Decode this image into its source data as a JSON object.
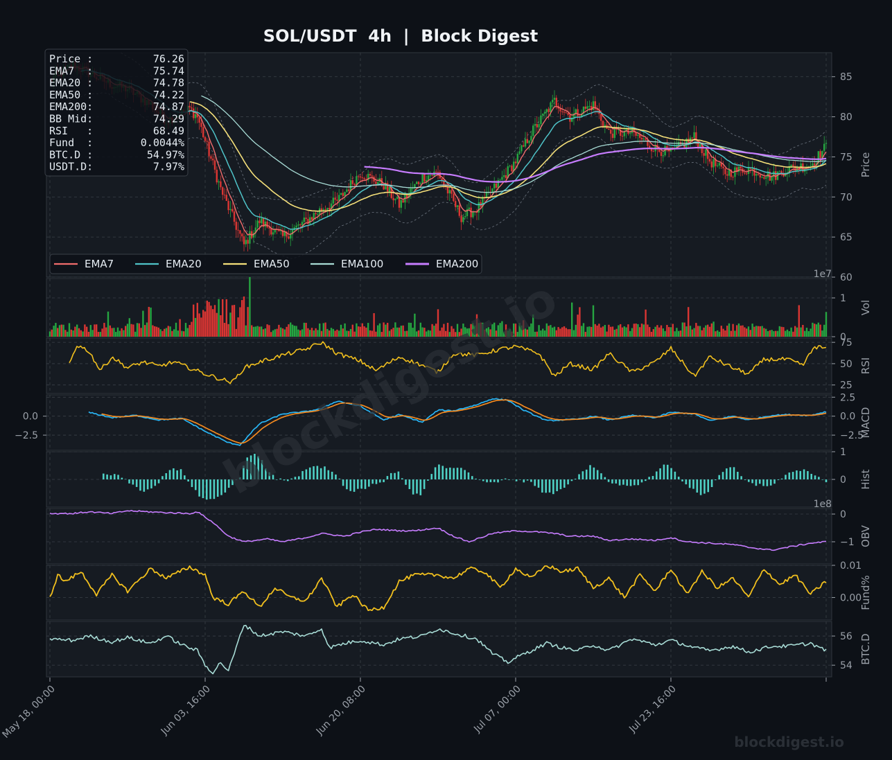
{
  "title": "SOL/USDT  4h  |  Block Digest",
  "watermark_center": "blockdigest.io",
  "watermark_corner": "blockdigest.io",
  "colors": {
    "background": "#0d1117",
    "panel": "#161b22",
    "grid": "#3a4048",
    "ema7": "#f06c6c",
    "ema20": "#4fc3c8",
    "ema50": "#f5e07a",
    "ema100": "#a8dcd6",
    "ema200": "#c77dff",
    "candle_up": "#26a641",
    "candle_down": "#da3633",
    "rsi": "#f2c01e",
    "macd": "#29b6f6",
    "signal": "#f58a1f",
    "hist": "#4fd1c5",
    "obv": "#c77dff",
    "fund": "#f2c01e",
    "btcd": "#a8dcd6"
  },
  "info_box": [
    {
      "label": "Price :",
      "value": "76.26"
    },
    {
      "label": "EMA7  :",
      "value": "75.74"
    },
    {
      "label": "EMA20 :",
      "value": "74.78"
    },
    {
      "label": "EMA50 :",
      "value": "74.22"
    },
    {
      "label": "EMA200:",
      "value": "74.87"
    },
    {
      "label": "BB Mid:",
      "value": "74.29"
    },
    {
      "label": "RSI   :",
      "value": "68.49"
    },
    {
      "label": "Fund  :",
      "value": "0.0044%"
    },
    {
      "label": "BTC.D :",
      "value": "54.97%"
    },
    {
      "label": "USDT.D:",
      "value": "7.97%"
    }
  ],
  "chart_data": {
    "type": "line",
    "x_tick_labels": [
      "May 18, 00:00",
      "Jun 03, 16:00",
      "Jun 20, 08:00",
      "Jul 07, 00:00",
      "Jul 23, 16:00"
    ],
    "legend": [
      "EMA7",
      "EMA20",
      "EMA50",
      "EMA100",
      "EMA200"
    ],
    "legend_position": "lower-left of price panel",
    "grid": true,
    "panels": [
      {
        "id": "price",
        "ylabel": "Price",
        "ylim": [
          60,
          88
        ],
        "ticks": [
          "60",
          "65",
          "70",
          "75",
          "80",
          "85"
        ],
        "tick_values": [
          60,
          65,
          70,
          75,
          80,
          85
        ]
      },
      {
        "id": "vol",
        "ylabel": "Vol",
        "ylim": [
          0,
          1.5
        ],
        "ticks": [
          "0",
          "1"
        ],
        "tick_values": [
          0,
          1
        ],
        "offset_label": "1e7"
      },
      {
        "id": "rsi",
        "ylabel": "RSI",
        "ylim": [
          15,
          80
        ],
        "ticks": [
          "25",
          "50",
          "75"
        ],
        "tick_values": [
          25,
          50,
          75
        ]
      },
      {
        "id": "macd",
        "ylabel": "MACD",
        "ylim": [
          -4.5,
          2.8
        ],
        "ticks": [
          "2.5",
          "0.0",
          "−2.5"
        ],
        "tick_values": [
          2.5,
          0,
          -2.5
        ],
        "left_ticks": [
          "0.0",
          "−2.5"
        ]
      },
      {
        "id": "hist",
        "ylabel": "Hist",
        "ylim": [
          -1.0,
          1.0
        ],
        "ticks": [
          "1",
          "0"
        ],
        "tick_values": [
          1,
          0
        ]
      },
      {
        "id": "obv",
        "ylabel": "OBV",
        "ylim": [
          -1.8,
          0.2
        ],
        "ticks": [
          "0",
          "−1"
        ],
        "tick_values": [
          0,
          -1
        ],
        "offset_label": "1e8"
      },
      {
        "id": "fund",
        "ylabel": "Fund%",
        "ylim": [
          -0.007,
          0.01
        ],
        "ticks": [
          "0.01",
          "0.00"
        ],
        "tick_values": [
          0.01,
          0.0
        ]
      },
      {
        "id": "btcd",
        "ylabel": "BTC.D",
        "ylim": [
          53.2,
          57.0
        ],
        "ticks": [
          "56",
          "54"
        ],
        "tick_values": [
          56,
          54
        ]
      }
    ],
    "price_close_path": {
      "x": [
        0,
        3,
        5,
        8,
        10,
        13,
        15,
        18,
        19,
        22,
        25,
        27,
        30,
        33,
        35,
        37,
        40,
        43,
        45,
        48,
        50,
        53,
        55,
        58,
        60,
        62,
        65,
        67,
        70,
        72,
        75,
        78,
        80,
        83,
        85,
        87,
        90,
        93,
        95,
        98,
        100
      ],
      "y": [
        84.5,
        86.5,
        85.5,
        84.0,
        83.5,
        81.5,
        79.5,
        81.0,
        80.0,
        71.0,
        64.0,
        67.0,
        65.0,
        67.0,
        68.5,
        69.5,
        73.0,
        71.5,
        69.0,
        72.5,
        73.0,
        67.5,
        68.5,
        72.0,
        74.5,
        78.0,
        82.0,
        80.0,
        81.5,
        78.0,
        78.0,
        76.0,
        75.5,
        77.5,
        74.5,
        73.0,
        73.5,
        72.5,
        73.5,
        74.0,
        76.3
      ]
    },
    "volume_scale": "1e7",
    "rsi_path": {
      "x": [
        2.5,
        3.5,
        5,
        6.5,
        8,
        10,
        12,
        14,
        16,
        18,
        20,
        22,
        23.5,
        25,
        27,
        30,
        33,
        35,
        37,
        40,
        42,
        45,
        48,
        50,
        52,
        55,
        58,
        60,
        63,
        65,
        67,
        70,
        72,
        75,
        78,
        80,
        83,
        85,
        88,
        90,
        92,
        95,
        97,
        98.5,
        100
      ],
      "y": [
        50,
        72,
        65,
        42,
        58,
        45,
        52,
        47,
        52,
        45,
        38,
        32,
        28,
        45,
        52,
        60,
        67,
        75,
        62,
        53,
        42,
        58,
        48,
        40,
        62,
        60,
        67,
        70,
        62,
        35,
        50,
        43,
        62,
        40,
        52,
        68,
        35,
        58,
        45,
        38,
        55,
        55,
        48,
        70,
        68
      ]
    },
    "macd_path": {
      "x": [
        5,
        8,
        11,
        14,
        17,
        20,
        23,
        24.5,
        27,
        30,
        33,
        35,
        37,
        40,
        43,
        45,
        48,
        50,
        52,
        55,
        57,
        59,
        61,
        64,
        66,
        68,
        70,
        72,
        75,
        78,
        80,
        83,
        85,
        88,
        90,
        93,
        95,
        98,
        100
      ],
      "y": [
        0.5,
        -0.2,
        0.1,
        -0.5,
        -0.3,
        -2.0,
        -3.5,
        -3.8,
        -1.0,
        0.3,
        0.6,
        1.0,
        2.0,
        1.3,
        -0.5,
        0.2,
        -0.8,
        0.8,
        0.7,
        1.5,
        2.3,
        2.1,
        0.8,
        -0.6,
        -0.5,
        -0.4,
        0.0,
        -0.5,
        0.1,
        -0.2,
        0.5,
        0.3,
        -0.6,
        0.0,
        -0.5,
        0.1,
        0.2,
        0.1,
        0.6
      ]
    },
    "obv_scale": "1e8",
    "obv_path": {
      "x": [
        0,
        3,
        5,
        8,
        10,
        15,
        18,
        19,
        21,
        23,
        25,
        28,
        30,
        33,
        35,
        38,
        40,
        42,
        45,
        47,
        50,
        52,
        54,
        55,
        57,
        60,
        63,
        65,
        67,
        70,
        72,
        75,
        78,
        80,
        82,
        85,
        88,
        90,
        93,
        95,
        98,
        100
      ],
      "y": [
        0.02,
        0.02,
        0.08,
        0.02,
        0.12,
        0.05,
        0.02,
        0.08,
        -0.3,
        -0.8,
        -1.0,
        -0.9,
        -1.0,
        -0.85,
        -0.7,
        -0.8,
        -0.65,
        -0.55,
        -0.6,
        -0.6,
        -0.5,
        -0.8,
        -1.0,
        -0.9,
        -0.7,
        -0.6,
        -0.65,
        -0.7,
        -0.8,
        -0.8,
        -0.95,
        -0.9,
        -0.95,
        -0.85,
        -1.0,
        -1.05,
        -1.1,
        -1.2,
        -1.3,
        -1.2,
        -1.05,
        -1.0
      ]
    },
    "fund_path": {
      "x": [
        0,
        1,
        2,
        4,
        6,
        8,
        10,
        13,
        15,
        18,
        20,
        21,
        23,
        25,
        27,
        29,
        31,
        33,
        35,
        37,
        39,
        41,
        43,
        45,
        47,
        50,
        52,
        54,
        56,
        58,
        60,
        62,
        64,
        66,
        68,
        70,
        72,
        74,
        76,
        78,
        80,
        82,
        84,
        86,
        88,
        90,
        92,
        94,
        96,
        98,
        100
      ],
      "y": [
        0.0,
        0.007,
        0.005,
        0.008,
        0.001,
        0.007,
        0.002,
        0.009,
        0.006,
        0.0095,
        0.007,
        0.0,
        -0.002,
        0.002,
        -0.003,
        0.003,
        0.0,
        -0.001,
        0.006,
        -0.003,
        0.001,
        -0.004,
        -0.003,
        0.005,
        0.007,
        0.007,
        0.006,
        0.009,
        0.008,
        0.003,
        0.009,
        0.006,
        0.01,
        0.008,
        0.009,
        0.003,
        0.006,
        0.0,
        0.007,
        0.002,
        0.009,
        0.001,
        0.008,
        0.003,
        0.006,
        0.0,
        0.009,
        0.004,
        0.007,
        0.001,
        0.005
      ]
    },
    "btcd_path": {
      "x": [
        0,
        3,
        5,
        8,
        10,
        13,
        15,
        17,
        19,
        20,
        21,
        22,
        23,
        25,
        27,
        30,
        33,
        35,
        36,
        38,
        40,
        43,
        45,
        48,
        50,
        52,
        55,
        57,
        59,
        60,
        62,
        64,
        66,
        68,
        70,
        72,
        75,
        78,
        80,
        83,
        85,
        88,
        90,
        93,
        95,
        98,
        100
      ],
      "y": [
        55.8,
        55.7,
        56.0,
        55.6,
        55.9,
        55.5,
        56.0,
        55.4,
        55.0,
        54.0,
        53.5,
        54.2,
        53.6,
        56.8,
        56.0,
        56.3,
        56.0,
        56.5,
        55.2,
        55.5,
        55.7,
        55.4,
        55.8,
        56.0,
        56.5,
        56.2,
        55.8,
        54.8,
        54.2,
        54.5,
        55.0,
        55.5,
        55.2,
        55.0,
        55.4,
        55.0,
        55.8,
        55.4,
        55.7,
        55.2,
        55.0,
        55.3,
        54.9,
        55.3,
        55.3,
        55.5,
        55.0
      ]
    }
  }
}
